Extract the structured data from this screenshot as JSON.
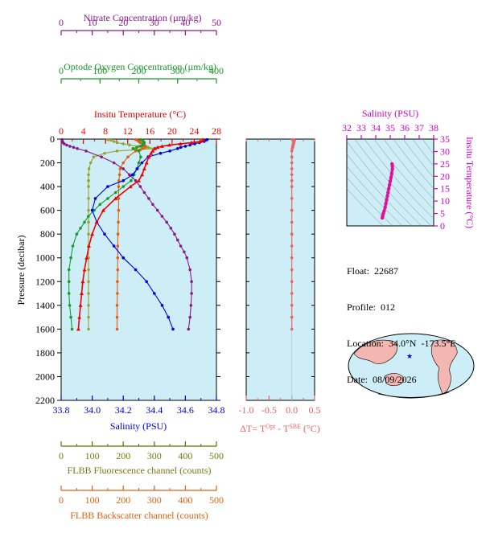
{
  "colors": {
    "nitrate": "#8B1A89",
    "oxygen": "#1A9A2A",
    "temperature": "#F00000",
    "salinity": "#0000E0",
    "fluorescence": "#A0A030",
    "backscatter": "#E06010",
    "delta_t": "#F06060",
    "ts_trace": "#E0109A",
    "ts_title": "#D000D0",
    "panel_bg": "#CDEEF6",
    "axis_olive": "#6B6B00"
  },
  "info": {
    "float": "Float:  22687",
    "profile": "Profile:  012",
    "location": "Location:  34.0°N  -173.5°E",
    "date": "Date:  08/09/2026"
  },
  "chart_data": [
    {
      "type": "line",
      "name": "main-profile",
      "ylabel": "Pressure (decibar)",
      "ylim": [
        2200,
        0
      ],
      "y_ticks": [
        "0",
        "200",
        "400",
        "600",
        "800",
        "1000",
        "1200",
        "1400",
        "1600",
        "1800",
        "2000",
        "2200"
      ],
      "axes": {
        "nitrate": {
          "label": "Nitrate Concentration (µm/kg)",
          "range": [
            0,
            50
          ],
          "ticks": [
            "0",
            "10",
            "20",
            "30",
            "40",
            "50"
          ]
        },
        "oxygen": {
          "label": "Optode Oxygen Concentration (µm/kg)",
          "range": [
            0,
            400
          ],
          "ticks": [
            "0",
            "100",
            "200",
            "300",
            "400"
          ]
        },
        "temperature": {
          "label": "Insitu Temperature (°C)",
          "range": [
            0,
            28
          ],
          "ticks": [
            "0",
            "4",
            "8",
            "12",
            "16",
            "20",
            "24",
            "28"
          ]
        },
        "salinity": {
          "label": "Salinity (PSU)",
          "range": [
            33.8,
            34.8
          ],
          "ticks": [
            "33.8",
            "34.0",
            "34.2",
            "34.4",
            "34.6",
            "34.8"
          ]
        },
        "fluorescence": {
          "label": "FLBB Fluorescence channel (counts)",
          "range": [
            0,
            500
          ],
          "ticks": [
            "0",
            "100",
            "200",
            "300",
            "400",
            "500"
          ]
        },
        "backscatter": {
          "label": "FLBB Backscatter channel (counts)",
          "range": [
            0,
            500
          ],
          "ticks": [
            "0",
            "100",
            "200",
            "300",
            "400",
            "500"
          ]
        }
      },
      "series": [
        {
          "key": "temperature",
          "pressure": [
            5,
            10,
            20,
            30,
            40,
            50,
            60,
            70,
            80,
            100,
            120,
            150,
            200,
            250,
            300,
            350,
            400,
            500,
            600,
            700,
            800,
            900,
            1000,
            1100,
            1200,
            1300,
            1400,
            1500,
            1600
          ],
          "values": [
            25.6,
            25.5,
            25.0,
            23.5,
            21.5,
            19.5,
            18.2,
            17.4,
            16.9,
            16.5,
            16.2,
            15.8,
            15.4,
            15.0,
            14.6,
            14.0,
            12.5,
            9.8,
            7.6,
            6.4,
            5.6,
            5.0,
            4.6,
            4.2,
            3.9,
            3.7,
            3.5,
            3.3,
            3.1
          ]
        },
        {
          "key": "salinity",
          "pressure": [
            5,
            10,
            20,
            30,
            40,
            50,
            60,
            70,
            80,
            100,
            120,
            150,
            200,
            250,
            300,
            350,
            400,
            500,
            600,
            700,
            800,
            900,
            1000,
            1100,
            1200,
            1300,
            1400,
            1500,
            1600
          ],
          "values": [
            34.74,
            34.73,
            34.72,
            34.69,
            34.66,
            34.63,
            34.6,
            34.57,
            34.55,
            34.5,
            34.44,
            34.36,
            34.32,
            34.29,
            34.26,
            34.2,
            34.1,
            34.02,
            34.0,
            34.03,
            34.08,
            34.14,
            34.2,
            34.28,
            34.35,
            34.4,
            34.45,
            34.49,
            34.52
          ]
        },
        {
          "key": "oxygen",
          "pressure": [
            5,
            10,
            20,
            30,
            40,
            50,
            60,
            70,
            80,
            100,
            150,
            200,
            250,
            300,
            350,
            400,
            450,
            500,
            550,
            600,
            650,
            700,
            750,
            800,
            900,
            1000,
            1100,
            1200,
            1300,
            1400,
            1500,
            1600
          ],
          "values": [
            205,
            210,
            212,
            214,
            212,
            210,
            205,
            195,
            185,
            200,
            205,
            200,
            195,
            188,
            180,
            160,
            140,
            120,
            100,
            85,
            70,
            60,
            50,
            40,
            30,
            25,
            20,
            20,
            20,
            22,
            25,
            28
          ]
        },
        {
          "key": "nitrate",
          "pressure": [
            5,
            10,
            20,
            30,
            40,
            50,
            60,
            70,
            80,
            100,
            150,
            200,
            250,
            300,
            350,
            400,
            450,
            500,
            550,
            600,
            650,
            700,
            750,
            800,
            850,
            900,
            950,
            1000,
            1100,
            1200,
            1300,
            1400,
            1500,
            1600
          ],
          "values": [
            0.3,
            0.3,
            0.4,
            0.6,
            1.0,
            1.8,
            2.8,
            4.0,
            5.2,
            8.0,
            13.0,
            17.0,
            20.0,
            22.0,
            24.0,
            25.5,
            26.8,
            28.2,
            29.5,
            31.0,
            32.5,
            34.0,
            35.3,
            36.5,
            37.5,
            38.5,
            39.6,
            40.5,
            41.5,
            42.0,
            42.0,
            41.8,
            41.5,
            41.0
          ]
        },
        {
          "key": "fluorescence",
          "pressure": [
            5,
            10,
            20,
            30,
            40,
            50,
            60,
            70,
            80,
            90,
            100,
            120,
            150,
            200,
            250,
            300,
            350,
            400,
            500,
            600,
            700,
            800,
            900,
            1000,
            1100,
            1200,
            1300,
            1400,
            1500,
            1600
          ],
          "values": [
            150,
            160,
            170,
            180,
            200,
            220,
            250,
            280,
            300,
            240,
            180,
            140,
            105,
            95,
            90,
            88,
            88,
            88,
            88,
            88,
            88,
            88,
            88,
            88,
            88,
            88,
            88,
            88,
            88,
            88
          ]
        },
        {
          "key": "backscatter",
          "pressure": [
            5,
            10,
            20,
            30,
            40,
            50,
            60,
            70,
            80,
            90,
            100,
            150,
            200,
            250,
            300,
            350,
            400,
            500,
            600,
            700,
            800,
            900,
            1000,
            1100,
            1200,
            1300,
            1400,
            1500,
            1600
          ],
          "values": [
            240,
            245,
            250,
            255,
            262,
            268,
            272,
            270,
            262,
            255,
            240,
            215,
            200,
            190,
            188,
            186,
            185,
            185,
            185,
            184,
            183,
            182,
            182,
            182,
            181,
            181,
            180,
            180,
            180
          ]
        }
      ]
    },
    {
      "type": "scatter",
      "name": "delta-t",
      "xlabel": "ΔT= T^Opt - T^SBE (°C)",
      "xlim": [
        -1.0,
        0.5
      ],
      "ylim": [
        2200,
        0
      ],
      "x_ticks": [
        "-1.0",
        "-0.5",
        "0.0",
        "0.5"
      ],
      "series": [
        {
          "key": "delta_t",
          "pressure": [
            5,
            10,
            20,
            30,
            40,
            50,
            60,
            70,
            80,
            100,
            150,
            200,
            250,
            300,
            350,
            400,
            500,
            600,
            700,
            800,
            900,
            1000,
            1100,
            1200,
            1300,
            1400,
            1500,
            1600
          ],
          "values": [
            0.02,
            0.06,
            0.05,
            0.04,
            0.04,
            0.03,
            0.02,
            0.02,
            0.01,
            0.0,
            0.0,
            0.0,
            0.0,
            0.0,
            0.0,
            0.0,
            0.0,
            0.0,
            0.0,
            0.0,
            0.0,
            0.0,
            0.0,
            0.0,
            0.0,
            0.0,
            0.0,
            0.0
          ]
        }
      ]
    },
    {
      "type": "line",
      "name": "ts-diagram",
      "title": "Salinity (PSU)",
      "ylabel": "Insitu Temperature (°C)",
      "xlim": [
        32,
        38
      ],
      "ylim": [
        0,
        35
      ],
      "x_ticks": [
        "32",
        "33",
        "34",
        "35",
        "36",
        "37",
        "38"
      ],
      "y_ticks": [
        "0",
        "5",
        "10",
        "15",
        "20",
        "25",
        "30",
        "35"
      ],
      "series": [
        {
          "key": "ts_trace",
          "x": [
            35.12,
            35.15,
            35.15,
            35.1,
            35.05,
            35.0,
            34.95,
            34.9,
            34.85,
            34.8,
            34.75,
            34.7,
            34.65,
            34.58,
            34.52,
            34.48,
            34.45
          ],
          "y": [
            25.0,
            24.0,
            23.0,
            21.0,
            19.5,
            18.0,
            16.5,
            15.0,
            13.5,
            12.0,
            10.5,
            9.0,
            7.5,
            6.0,
            5.0,
            4.0,
            3.2
          ]
        }
      ]
    }
  ]
}
